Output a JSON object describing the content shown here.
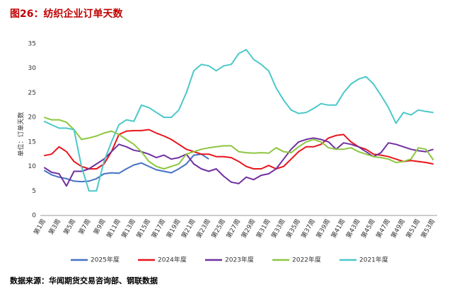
{
  "chart_data": {
    "type": "line",
    "title": "图26：纺织企业订单天数",
    "y_label": "单位：订单天数",
    "source": "数据来源：华闻期货交易咨询部、钢联数据",
    "categories": [
      "第1周",
      null,
      "第3周",
      null,
      "第5周",
      null,
      "第7周",
      null,
      "第9周",
      null,
      "第11周",
      null,
      "第13周",
      null,
      "第15周",
      null,
      "第17周",
      null,
      "第19周",
      null,
      "第21周",
      null,
      "第23周",
      null,
      "第25周",
      null,
      "第27周",
      null,
      "第29周",
      null,
      "第31周",
      null,
      "第33周",
      null,
      "第35周",
      null,
      "第37周",
      null,
      "第39周",
      null,
      "第41周",
      null,
      "第43周",
      null,
      "第45周",
      null,
      "第47周",
      null,
      "第49周",
      null,
      "第51周",
      null,
      "第53周"
    ],
    "ylim": [
      0,
      35
    ],
    "yticks": [
      0,
      5,
      10,
      15,
      20,
      25,
      30,
      35
    ],
    "legend": "bottom",
    "series": [
      {
        "name": "2025年度",
        "color": "#4472c4",
        "values": [
          9.2,
          8.3,
          7.8,
          7.5,
          7.0,
          6.9,
          7.0,
          7.5,
          8.5,
          8.7,
          8.6,
          9.5,
          10.3,
          10.7,
          10.0,
          9.3,
          9.0,
          8.7,
          9.5,
          10.5,
          12.3,
          12.5,
          11.5,
          null,
          null,
          null,
          null,
          null,
          null,
          null,
          null,
          null,
          null,
          null,
          null,
          null,
          null,
          null,
          null,
          null,
          null,
          null,
          null,
          null,
          null,
          null,
          null,
          null,
          null,
          null,
          null,
          null,
          null
        ]
      },
      {
        "name": "2024年度",
        "color": "#e8141a",
        "values": [
          12.2,
          12.5,
          14.0,
          13.0,
          11.0,
          10.0,
          9.5,
          9.5,
          10.5,
          13.0,
          16.5,
          17.2,
          17.3,
          17.3,
          17.5,
          16.8,
          16.2,
          15.5,
          14.5,
          13.5,
          13.0,
          12.5,
          12.5,
          12.0,
          12.0,
          11.8,
          11.0,
          10.0,
          9.5,
          9.5,
          10.2,
          9.5,
          10.0,
          11.5,
          13.0,
          14.0,
          14.0,
          14.5,
          15.8,
          16.3,
          16.5,
          15.0,
          14.0,
          13.5,
          12.5,
          12.3,
          12.0,
          11.5,
          11.0,
          11.2,
          11.0,
          10.8,
          10.5
        ]
      },
      {
        "name": "2023年度",
        "color": "#7030a0",
        "values": [
          9.8,
          8.8,
          8.5,
          6.0,
          9.0,
          9.0,
          9.5,
          10.5,
          11.5,
          13.0,
          14.5,
          14.0,
          13.3,
          13.0,
          12.5,
          11.8,
          12.3,
          11.5,
          11.8,
          12.5,
          10.5,
          9.5,
          9.0,
          9.5,
          8.0,
          6.8,
          6.5,
          7.8,
          7.3,
          8.2,
          8.5,
          9.5,
          11.5,
          13.5,
          15.0,
          15.5,
          15.8,
          15.5,
          15.0,
          13.5,
          14.8,
          14.5,
          14.0,
          13.0,
          12.0,
          12.8,
          14.8,
          14.5,
          14.0,
          13.5,
          13.2,
          13.0,
          13.5
        ]
      },
      {
        "name": "2022年度",
        "color": "#8dc63f",
        "values": [
          20.0,
          19.5,
          19.5,
          19.0,
          17.5,
          15.5,
          15.8,
          16.2,
          16.8,
          17.2,
          16.5,
          15.5,
          14.5,
          13.0,
          11.0,
          10.0,
          9.5,
          10.0,
          10.5,
          12.5,
          13.0,
          13.5,
          13.8,
          14.0,
          14.2,
          14.2,
          13.0,
          12.8,
          12.7,
          12.8,
          12.7,
          13.8,
          13.0,
          12.8,
          14.0,
          15.0,
          15.5,
          15.0,
          13.8,
          13.5,
          13.5,
          13.8,
          13.0,
          12.5,
          12.0,
          11.8,
          11.5,
          10.8,
          11.0,
          11.5,
          13.8,
          13.5,
          11.3
        ]
      },
      {
        "name": "2021年度",
        "color": "#4bc8c8",
        "values": [
          19.2,
          18.5,
          17.8,
          17.8,
          17.5,
          10.0,
          5.0,
          5.0,
          11.0,
          15.0,
          18.5,
          19.5,
          19.2,
          22.5,
          22.0,
          21.0,
          20.0,
          20.0,
          21.5,
          25.0,
          29.5,
          30.8,
          30.5,
          29.5,
          30.5,
          30.8,
          33.0,
          33.8,
          31.8,
          30.8,
          29.5,
          26.0,
          23.5,
          21.5,
          20.8,
          21.0,
          21.8,
          22.8,
          22.5,
          22.5,
          25.0,
          26.8,
          27.8,
          28.3,
          26.8,
          24.5,
          22.0,
          18.8,
          21.0,
          20.5,
          21.5,
          21.2,
          21.0
        ]
      }
    ]
  }
}
